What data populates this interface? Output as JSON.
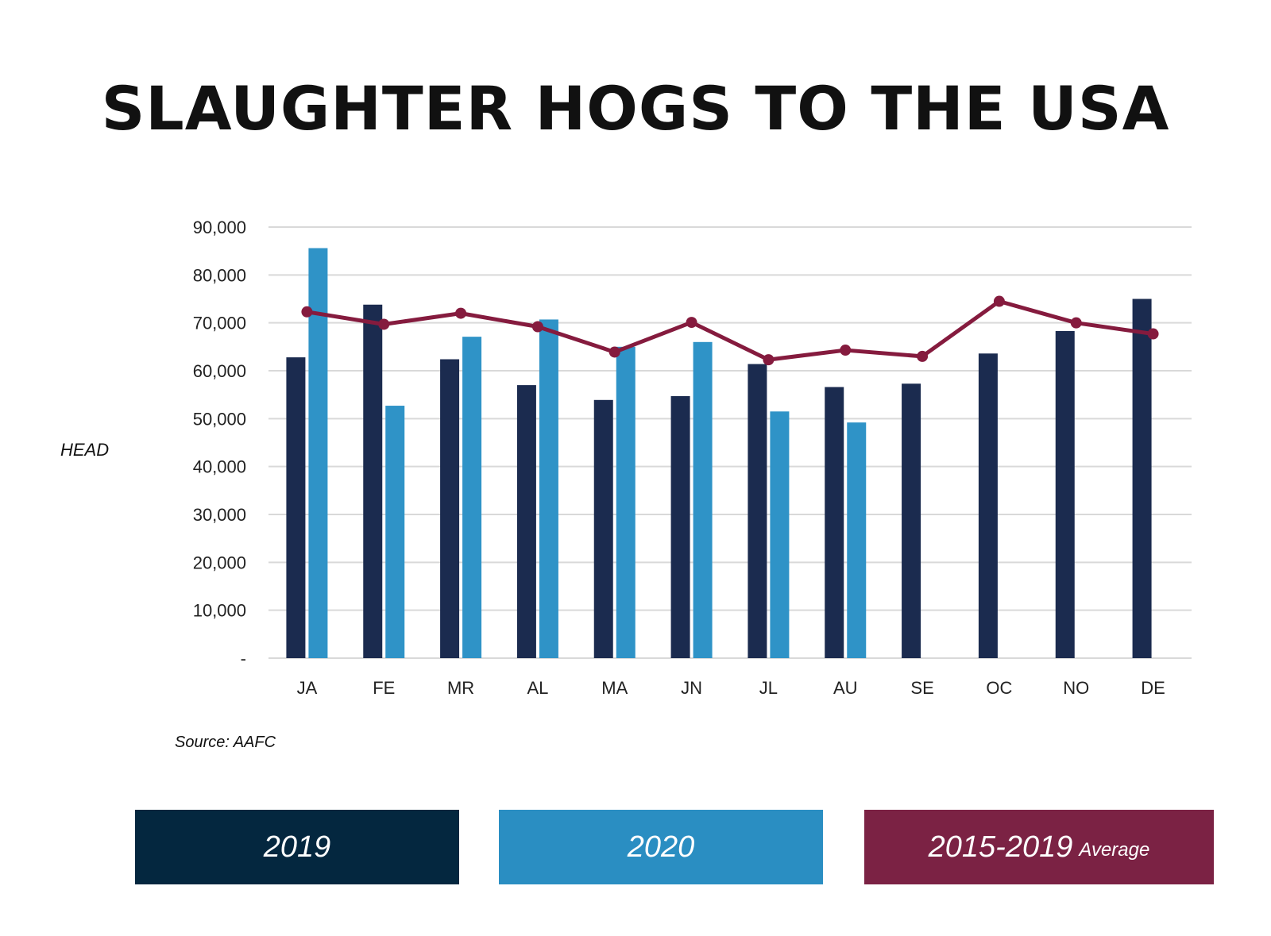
{
  "title": "SLAUGHTER HOGS TO THE USA",
  "source": "Source: AAFC",
  "legend": [
    {
      "label": "2019",
      "suffix": "",
      "color": "#04273F"
    },
    {
      "label": "2020",
      "suffix": "",
      "color": "#2A8EC2"
    },
    {
      "label": "2015-2019",
      "suffix": "Average",
      "color": "#7B2244"
    }
  ],
  "chart_data": {
    "type": "bar",
    "title": "SLAUGHTER HOGS TO THE USA",
    "ylabel": "HEAD",
    "xlabel": "",
    "categories": [
      "JA",
      "FE",
      "MR",
      "AL",
      "MA",
      "JN",
      "JL",
      "AU",
      "SE",
      "OC",
      "NO",
      "DE"
    ],
    "ylim": [
      0,
      90000
    ],
    "yticks": [
      0,
      10000,
      20000,
      30000,
      40000,
      50000,
      60000,
      70000,
      80000,
      90000
    ],
    "ytick_labels": [
      "-",
      "10,000",
      "20,000",
      "30,000",
      "40,000",
      "50,000",
      "60,000",
      "70,000",
      "80,000",
      "90,000"
    ],
    "grid": true,
    "series": [
      {
        "name": "2019",
        "kind": "bar",
        "color": "#1B2B4F",
        "values": [
          62800,
          73800,
          62400,
          57000,
          53900,
          54700,
          61400,
          56600,
          57300,
          63600,
          68300,
          75000
        ]
      },
      {
        "name": "2020",
        "kind": "bar",
        "color": "#2F93C7",
        "values": [
          85600,
          52700,
          67100,
          70700,
          65000,
          66000,
          51500,
          49200,
          null,
          null,
          null,
          null
        ]
      },
      {
        "name": "2015-2019 Average",
        "kind": "line",
        "color": "#851B3E",
        "values": [
          72300,
          69700,
          72000,
          69200,
          63900,
          70100,
          62300,
          64300,
          63000,
          74500,
          70000,
          67700
        ]
      }
    ]
  }
}
